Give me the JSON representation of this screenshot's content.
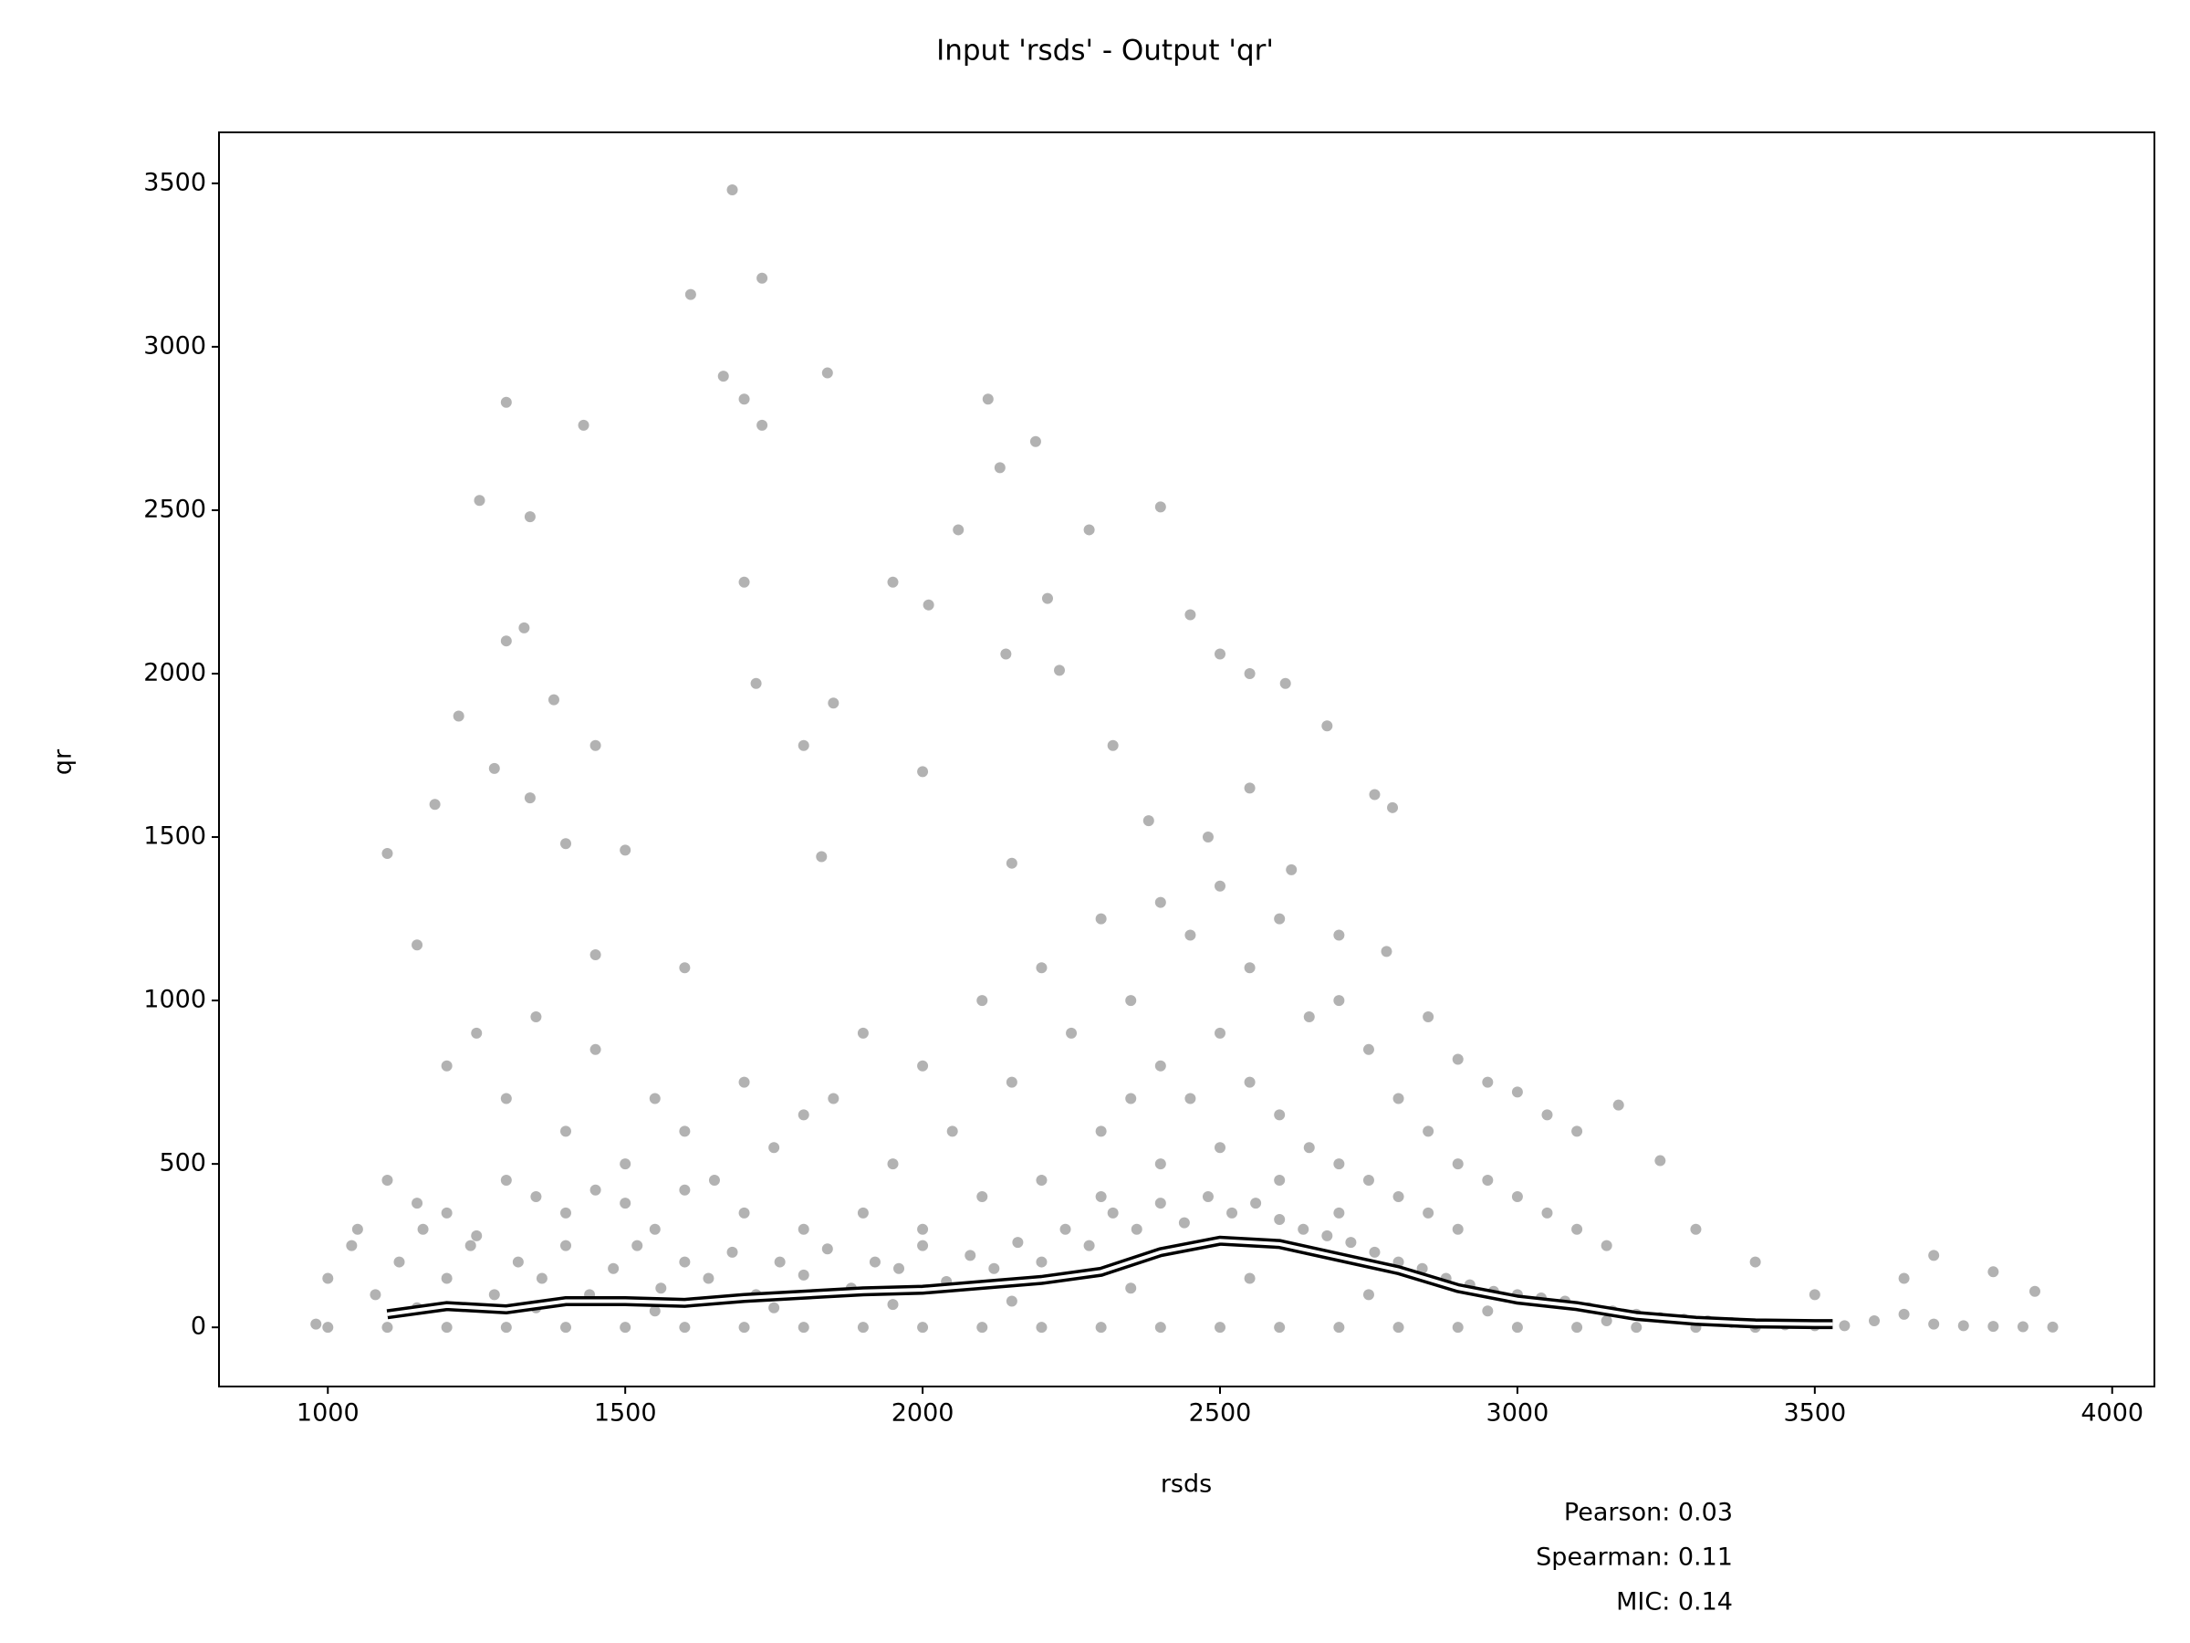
{
  "chart_data": {
    "type": "scatter",
    "title": "Input 'rsds' - Output 'qr'",
    "x_label": "rsds",
    "y_label": "qr",
    "xlim": [
      817,
      4071
    ],
    "ylim": [
      -181,
      3656
    ],
    "xticks": [
      1000,
      1500,
      2000,
      2500,
      3000,
      3500,
      4000
    ],
    "yticks": [
      0,
      500,
      1000,
      1500,
      2000,
      2500,
      3000,
      3500
    ],
    "color": "#000000",
    "line_color": "#ffffff",
    "annotations": [
      "Pearson: 0.03",
      "Spearman: 0.11",
      "MIC: 0.14"
    ],
    "points": [
      [
        1100,
        1450
      ],
      [
        1255,
        2530
      ],
      [
        1300,
        2830
      ],
      [
        1340,
        2480
      ],
      [
        1430,
        2760
      ],
      [
        1610,
        3160
      ],
      [
        1665,
        2910
      ],
      [
        1680,
        3480
      ],
      [
        1700,
        2840
      ],
      [
        1730,
        3210
      ],
      [
        1730,
        2760
      ],
      [
        1840,
        2920
      ],
      [
        2110,
        2840
      ],
      [
        2130,
        2630
      ],
      [
        2190,
        2710
      ],
      [
        2400,
        2510
      ],
      [
        1950,
        2280
      ],
      [
        2010,
        2210
      ],
      [
        2060,
        2440
      ],
      [
        2280,
        2440
      ],
      [
        2210,
        2230
      ],
      [
        1300,
        2100
      ],
      [
        1330,
        2140
      ],
      [
        1220,
        1870
      ],
      [
        1380,
        1920
      ],
      [
        1450,
        1780
      ],
      [
        1700,
        2280
      ],
      [
        1720,
        1970
      ],
      [
        1850,
        1910
      ],
      [
        2140,
        2060
      ],
      [
        2230,
        2010
      ],
      [
        2450,
        2180
      ],
      [
        2500,
        2060
      ],
      [
        2550,
        2000
      ],
      [
        2610,
        1970
      ],
      [
        2680,
        1840
      ],
      [
        2790,
        1590
      ],
      [
        2760,
        1630
      ],
      [
        1180,
        1600
      ],
      [
        1280,
        1710
      ],
      [
        1340,
        1620
      ],
      [
        1400,
        1480
      ],
      [
        1500,
        1460
      ],
      [
        1150,
        1170
      ],
      [
        1450,
        1140
      ],
      [
        1600,
        1100
      ],
      [
        1800,
        1780
      ],
      [
        1830,
        1440
      ],
      [
        2000,
        1700
      ],
      [
        2150,
        1420
      ],
      [
        2320,
        1780
      ],
      [
        2380,
        1550
      ],
      [
        2480,
        1500
      ],
      [
        2550,
        1650
      ],
      [
        2620,
        1400
      ],
      [
        2700,
        1200
      ],
      [
        2780,
        1150
      ],
      [
        2850,
        950
      ],
      [
        2900,
        820
      ],
      [
        2950,
        750
      ],
      [
        3000,
        720
      ],
      [
        3050,
        650
      ],
      [
        3100,
        600
      ],
      [
        3170,
        680
      ],
      [
        3240,
        510
      ],
      [
        3300,
        300
      ],
      [
        3400,
        200
      ],
      [
        3500,
        100
      ],
      [
        3650,
        150
      ],
      [
        3700,
        220
      ],
      [
        3800,
        170
      ],
      [
        3870,
        110
      ],
      [
        1050,
        300
      ],
      [
        1100,
        450
      ],
      [
        1150,
        380
      ],
      [
        1200,
        800
      ],
      [
        1250,
        900
      ],
      [
        1300,
        700
      ],
      [
        1350,
        950
      ],
      [
        1400,
        600
      ],
      [
        1450,
        850
      ],
      [
        1500,
        500
      ],
      [
        1550,
        700
      ],
      [
        1600,
        600
      ],
      [
        1650,
        450
      ],
      [
        1700,
        750
      ],
      [
        1750,
        550
      ],
      [
        1800,
        650
      ],
      [
        1850,
        700
      ],
      [
        1900,
        900
      ],
      [
        1950,
        500
      ],
      [
        2000,
        800
      ],
      [
        2050,
        600
      ],
      [
        2100,
        1000
      ],
      [
        2150,
        750
      ],
      [
        2200,
        1100
      ],
      [
        2250,
        900
      ],
      [
        2300,
        1250
      ],
      [
        2350,
        1000
      ],
      [
        2400,
        1300
      ],
      [
        2450,
        1200
      ],
      [
        2500,
        1350
      ],
      [
        2550,
        1100
      ],
      [
        2600,
        1250
      ],
      [
        2650,
        950
      ],
      [
        2700,
        1000
      ],
      [
        2750,
        850
      ],
      [
        2800,
        700
      ],
      [
        2850,
        600
      ],
      [
        2900,
        500
      ],
      [
        2950,
        450
      ],
      [
        3000,
        400
      ],
      [
        3050,
        350
      ],
      [
        3100,
        300
      ],
      [
        3150,
        250
      ],
      [
        1200,
        350
      ],
      [
        1250,
        280
      ],
      [
        1300,
        450
      ],
      [
        1350,
        400
      ],
      [
        1400,
        350
      ],
      [
        1450,
        420
      ],
      [
        1500,
        380
      ],
      [
        1550,
        300
      ],
      [
        1600,
        420
      ],
      [
        1700,
        350
      ],
      [
        1800,
        300
      ],
      [
        1900,
        350
      ],
      [
        2000,
        300
      ],
      [
        2100,
        400
      ],
      [
        2200,
        450
      ],
      [
        2300,
        600
      ],
      [
        2350,
        700
      ],
      [
        2400,
        800
      ],
      [
        2450,
        700
      ],
      [
        2500,
        900
      ],
      [
        2550,
        750
      ],
      [
        2600,
        650
      ],
      [
        2650,
        550
      ],
      [
        2700,
        500
      ],
      [
        2750,
        450
      ],
      [
        2800,
        400
      ],
      [
        2850,
        350
      ],
      [
        2900,
        300
      ],
      [
        2400,
        500
      ],
      [
        2500,
        550
      ],
      [
        2600,
        450
      ],
      [
        2300,
        400
      ],
      [
        2700,
        350
      ],
      [
        980,
        10
      ],
      [
        1000,
        150
      ],
      [
        1040,
        250
      ],
      [
        1080,
        100
      ],
      [
        1120,
        200
      ],
      [
        1160,
        300
      ],
      [
        1200,
        150
      ],
      [
        1240,
        250
      ],
      [
        1280,
        100
      ],
      [
        1320,
        200
      ],
      [
        1360,
        150
      ],
      [
        1400,
        250
      ],
      [
        1440,
        100
      ],
      [
        1480,
        180
      ],
      [
        1520,
        250
      ],
      [
        1560,
        120
      ],
      [
        1600,
        200
      ],
      [
        1640,
        150
      ],
      [
        1680,
        230
      ],
      [
        1720,
        100
      ],
      [
        1760,
        200
      ],
      [
        1800,
        160
      ],
      [
        1840,
        240
      ],
      [
        1880,
        120
      ],
      [
        1920,
        200
      ],
      [
        1960,
        180
      ],
      [
        2000,
        250
      ],
      [
        2040,
        140
      ],
      [
        2080,
        220
      ],
      [
        2120,
        180
      ],
      [
        2160,
        260
      ],
      [
        2200,
        200
      ],
      [
        2240,
        300
      ],
      [
        2280,
        250
      ],
      [
        2320,
        350
      ],
      [
        2360,
        300
      ],
      [
        2400,
        380
      ],
      [
        2440,
        320
      ],
      [
        2480,
        400
      ],
      [
        2520,
        350
      ],
      [
        2560,
        380
      ],
      [
        2600,
        330
      ],
      [
        2640,
        300
      ],
      [
        2680,
        280
      ],
      [
        2720,
        260
      ],
      [
        2760,
        230
      ],
      [
        2800,
        200
      ],
      [
        2840,
        180
      ],
      [
        2880,
        150
      ],
      [
        2920,
        130
      ],
      [
        2960,
        110
      ],
      [
        3000,
        100
      ],
      [
        3040,
        90
      ],
      [
        3080,
        80
      ],
      [
        3120,
        60
      ],
      [
        3160,
        50
      ],
      [
        3200,
        40
      ],
      [
        3240,
        30
      ],
      [
        3280,
        25
      ],
      [
        3320,
        20
      ],
      [
        3360,
        15
      ],
      [
        3400,
        10
      ],
      [
        3450,
        8
      ],
      [
        3500,
        5
      ],
      [
        3550,
        5
      ],
      [
        3600,
        20
      ],
      [
        3650,
        40
      ],
      [
        3700,
        10
      ],
      [
        3750,
        5
      ],
      [
        3800,
        3
      ],
      [
        3850,
        2
      ],
      [
        3900,
        1
      ],
      [
        1000,
        0
      ],
      [
        1100,
        0
      ],
      [
        1200,
        0
      ],
      [
        1300,
        0
      ],
      [
        1400,
        0
      ],
      [
        1500,
        0
      ],
      [
        1600,
        0
      ],
      [
        1700,
        0
      ],
      [
        1800,
        0
      ],
      [
        1900,
        0
      ],
      [
        2000,
        0
      ],
      [
        2100,
        0
      ],
      [
        2200,
        0
      ],
      [
        2300,
        0
      ],
      [
        2400,
        0
      ],
      [
        2500,
        0
      ],
      [
        2600,
        0
      ],
      [
        2700,
        0
      ],
      [
        2800,
        0
      ],
      [
        2900,
        0
      ],
      [
        3000,
        0
      ],
      [
        3100,
        0
      ],
      [
        3200,
        0
      ],
      [
        3300,
        0
      ],
      [
        3400,
        0
      ],
      [
        1150,
        60
      ],
      [
        1350,
        60
      ],
      [
        1550,
        50
      ],
      [
        1750,
        60
      ],
      [
        1950,
        70
      ],
      [
        2150,
        80
      ],
      [
        2350,
        120
      ],
      [
        2550,
        150
      ],
      [
        2750,
        100
      ],
      [
        2950,
        50
      ],
      [
        3150,
        20
      ]
    ],
    "line_x": [
      1100,
      1200,
      1300,
      1400,
      1500,
      1600,
      1700,
      1800,
      1900,
      2000,
      2100,
      2200,
      2300,
      2400,
      2500,
      2600,
      2700,
      2800,
      2900,
      3000,
      3100,
      3200,
      3300,
      3400,
      3500,
      3530
    ],
    "line_y": [
      40,
      65,
      55,
      80,
      80,
      75,
      90,
      100,
      110,
      115,
      130,
      145,
      170,
      230,
      265,
      255,
      215,
      175,
      120,
      85,
      65,
      35,
      20,
      12,
      10,
      10
    ]
  }
}
